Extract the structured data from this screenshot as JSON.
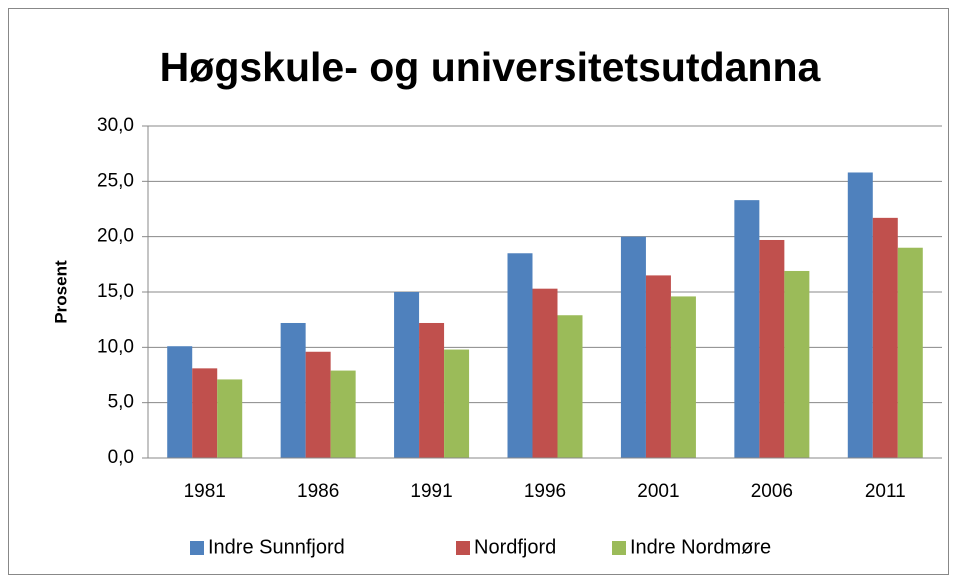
{
  "chart_data": {
    "type": "bar",
    "title": "Høgskule- og universitetsutdanna",
    "y_label": "Prosent",
    "categories": [
      "1981",
      "1986",
      "1991",
      "1996",
      "2001",
      "2006",
      "2011"
    ],
    "series": [
      {
        "name": "Indre Sunnfjord",
        "color": "#4f81bd",
        "values": [
          10.1,
          12.2,
          15.0,
          18.5,
          20.0,
          23.3,
          25.8
        ]
      },
      {
        "name": "Nordfjord",
        "color": "#c0504d",
        "values": [
          8.1,
          9.6,
          12.2,
          15.3,
          16.5,
          19.7,
          21.7
        ]
      },
      {
        "name": "Indre Nordmøre",
        "color": "#9bbb59",
        "values": [
          7.1,
          7.9,
          9.8,
          12.9,
          14.6,
          16.9,
          19.0
        ]
      }
    ],
    "ylim": [
      0,
      30
    ],
    "yticks": [
      {
        "value": 0,
        "label": "0,0"
      },
      {
        "value": 5,
        "label": "5,0"
      },
      {
        "value": 10,
        "label": "10,0"
      },
      {
        "value": 15,
        "label": "15,0"
      },
      {
        "value": 20,
        "label": "20,0"
      },
      {
        "value": 25,
        "label": "25,0"
      },
      {
        "value": 30,
        "label": "30,0"
      }
    ],
    "grid": true,
    "legend": "bottom"
  }
}
